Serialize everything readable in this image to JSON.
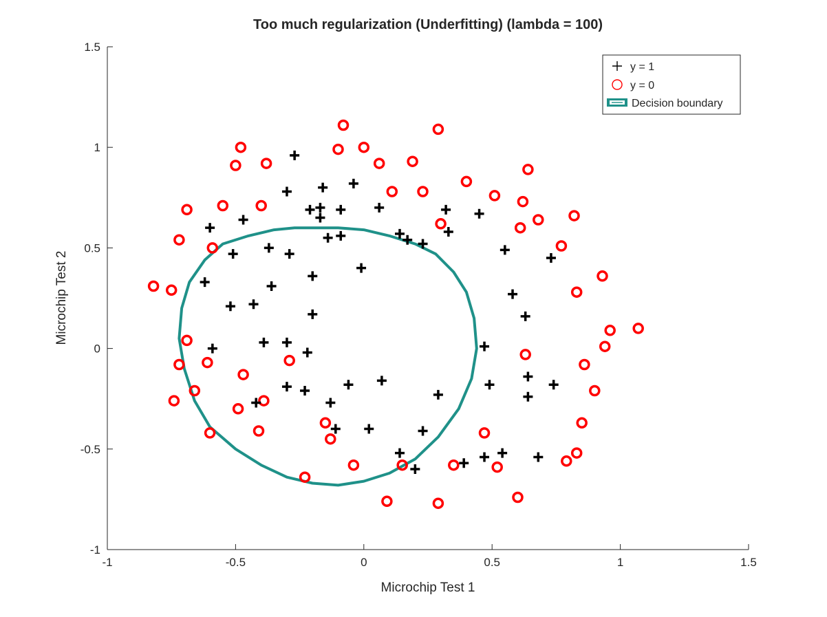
{
  "chart_data": {
    "type": "scatter",
    "title": "Too much regularization (Underfitting) (lambda = 100)",
    "xlabel": "Microchip Test 1",
    "ylabel": "Microchip Test 2",
    "xlim": [
      -1,
      1.5
    ],
    "ylim": [
      -1,
      1.5
    ],
    "xticks": [
      -1,
      -0.5,
      0,
      0.5,
      1,
      1.5
    ],
    "xtick_labels": [
      "-1",
      "-0.5",
      "0",
      "0.5",
      "1",
      "1.5"
    ],
    "yticks": [
      -1,
      -0.5,
      0,
      0.5,
      1,
      1.5
    ],
    "ytick_labels": [
      "-1",
      "-0.5",
      "0",
      "0.5",
      "1",
      "1.5"
    ],
    "grid": false,
    "legend_position": "top-right",
    "colors": {
      "positive": "#000000",
      "negative": "#ff0000",
      "boundary": "#1f9189",
      "axis": "#262626"
    },
    "series": [
      {
        "name": "y = 1",
        "marker": "plus",
        "points": [
          [
            -0.27,
            0.96
          ],
          [
            -0.3,
            0.78
          ],
          [
            -0.16,
            0.8
          ],
          [
            -0.04,
            0.82
          ],
          [
            -0.21,
            0.69
          ],
          [
            -0.17,
            0.7
          ],
          [
            -0.09,
            0.69
          ],
          [
            0.06,
            0.7
          ],
          [
            -0.47,
            0.64
          ],
          [
            -0.6,
            0.6
          ],
          [
            -0.17,
            0.65
          ],
          [
            0.32,
            0.69
          ],
          [
            0.45,
            0.67
          ],
          [
            -0.14,
            0.55
          ],
          [
            -0.09,
            0.56
          ],
          [
            0.14,
            0.57
          ],
          [
            0.17,
            0.54
          ],
          [
            0.23,
            0.52
          ],
          [
            0.33,
            0.58
          ],
          [
            -0.37,
            0.5
          ],
          [
            -0.29,
            0.47
          ],
          [
            -0.51,
            0.47
          ],
          [
            0.55,
            0.49
          ],
          [
            0.73,
            0.45
          ],
          [
            -0.01,
            0.4
          ],
          [
            -0.2,
            0.36
          ],
          [
            -0.62,
            0.33
          ],
          [
            -0.36,
            0.31
          ],
          [
            -0.52,
            0.21
          ],
          [
            -0.43,
            0.22
          ],
          [
            -0.2,
            0.17
          ],
          [
            0.58,
            0.27
          ],
          [
            0.63,
            0.16
          ],
          [
            -0.59,
            0.0
          ],
          [
            -0.39,
            0.03
          ],
          [
            -0.3,
            0.03
          ],
          [
            -0.22,
            -0.02
          ],
          [
            0.47,
            0.01
          ],
          [
            -0.3,
            -0.19
          ],
          [
            -0.23,
            -0.21
          ],
          [
            -0.06,
            -0.18
          ],
          [
            0.07,
            -0.16
          ],
          [
            0.29,
            -0.23
          ],
          [
            0.49,
            -0.18
          ],
          [
            0.64,
            -0.14
          ],
          [
            0.74,
            -0.18
          ],
          [
            0.64,
            -0.24
          ],
          [
            -0.42,
            -0.27
          ],
          [
            -0.13,
            -0.27
          ],
          [
            -0.11,
            -0.4
          ],
          [
            0.02,
            -0.4
          ],
          [
            0.23,
            -0.41
          ],
          [
            0.14,
            -0.52
          ],
          [
            0.2,
            -0.6
          ],
          [
            0.39,
            -0.57
          ],
          [
            0.47,
            -0.54
          ],
          [
            0.54,
            -0.52
          ],
          [
            0.68,
            -0.54
          ]
        ]
      },
      {
        "name": "y = 0",
        "marker": "circle",
        "points": [
          [
            -0.08,
            1.11
          ],
          [
            0.29,
            1.09
          ],
          [
            -0.48,
            1.0
          ],
          [
            -0.1,
            0.99
          ],
          [
            0.0,
            1.0
          ],
          [
            -0.5,
            0.91
          ],
          [
            -0.38,
            0.92
          ],
          [
            0.06,
            0.92
          ],
          [
            0.19,
            0.93
          ],
          [
            0.64,
            0.89
          ],
          [
            0.4,
            0.83
          ],
          [
            0.11,
            0.78
          ],
          [
            0.23,
            0.78
          ],
          [
            0.51,
            0.76
          ],
          [
            0.62,
            0.73
          ],
          [
            -0.55,
            0.71
          ],
          [
            -0.4,
            0.71
          ],
          [
            -0.69,
            0.69
          ],
          [
            0.82,
            0.66
          ],
          [
            0.68,
            0.64
          ],
          [
            0.3,
            0.62
          ],
          [
            0.61,
            0.6
          ],
          [
            -0.72,
            0.54
          ],
          [
            -0.59,
            0.5
          ],
          [
            0.77,
            0.51
          ],
          [
            0.93,
            0.36
          ],
          [
            -0.82,
            0.31
          ],
          [
            -0.75,
            0.29
          ],
          [
            0.83,
            0.28
          ],
          [
            0.96,
            0.09
          ],
          [
            1.07,
            0.1
          ],
          [
            0.94,
            0.01
          ],
          [
            -0.69,
            0.04
          ],
          [
            -0.29,
            -0.06
          ],
          [
            -0.61,
            -0.07
          ],
          [
            0.63,
            -0.03
          ],
          [
            0.86,
            -0.08
          ],
          [
            -0.72,
            -0.08
          ],
          [
            -0.47,
            -0.13
          ],
          [
            -0.66,
            -0.21
          ],
          [
            0.9,
            -0.21
          ],
          [
            -0.74,
            -0.26
          ],
          [
            -0.39,
            -0.26
          ],
          [
            -0.49,
            -0.3
          ],
          [
            -0.15,
            -0.37
          ],
          [
            0.85,
            -0.37
          ],
          [
            -0.6,
            -0.42
          ],
          [
            -0.41,
            -0.41
          ],
          [
            -0.13,
            -0.45
          ],
          [
            0.47,
            -0.42
          ],
          [
            -0.04,
            -0.58
          ],
          [
            0.15,
            -0.58
          ],
          [
            0.35,
            -0.58
          ],
          [
            0.52,
            -0.59
          ],
          [
            0.83,
            -0.52
          ],
          [
            0.79,
            -0.56
          ],
          [
            -0.23,
            -0.64
          ],
          [
            0.09,
            -0.76
          ],
          [
            0.29,
            -0.77
          ],
          [
            0.6,
            -0.74
          ]
        ]
      },
      {
        "name": "Decision boundary",
        "marker": "line",
        "points": [
          [
            -0.2,
            0.6
          ],
          [
            -0.1,
            0.6
          ],
          [
            0.0,
            0.59
          ],
          [
            0.1,
            0.56
          ],
          [
            0.2,
            0.52
          ],
          [
            0.28,
            0.47
          ],
          [
            0.35,
            0.38
          ],
          [
            0.4,
            0.28
          ],
          [
            0.43,
            0.15
          ],
          [
            0.44,
            0.0
          ],
          [
            0.42,
            -0.15
          ],
          [
            0.37,
            -0.3
          ],
          [
            0.29,
            -0.44
          ],
          [
            0.2,
            -0.55
          ],
          [
            0.1,
            -0.62
          ],
          [
            0.0,
            -0.66
          ],
          [
            -0.1,
            -0.68
          ],
          [
            -0.2,
            -0.67
          ],
          [
            -0.3,
            -0.64
          ],
          [
            -0.4,
            -0.58
          ],
          [
            -0.5,
            -0.5
          ],
          [
            -0.6,
            -0.39
          ],
          [
            -0.66,
            -0.26
          ],
          [
            -0.7,
            -0.1
          ],
          [
            -0.72,
            0.05
          ],
          [
            -0.71,
            0.2
          ],
          [
            -0.68,
            0.33
          ],
          [
            -0.62,
            0.44
          ],
          [
            -0.55,
            0.52
          ],
          [
            -0.45,
            0.56
          ],
          [
            -0.35,
            0.59
          ],
          [
            -0.27,
            0.6
          ],
          [
            -0.2,
            0.6
          ]
        ]
      }
    ]
  }
}
